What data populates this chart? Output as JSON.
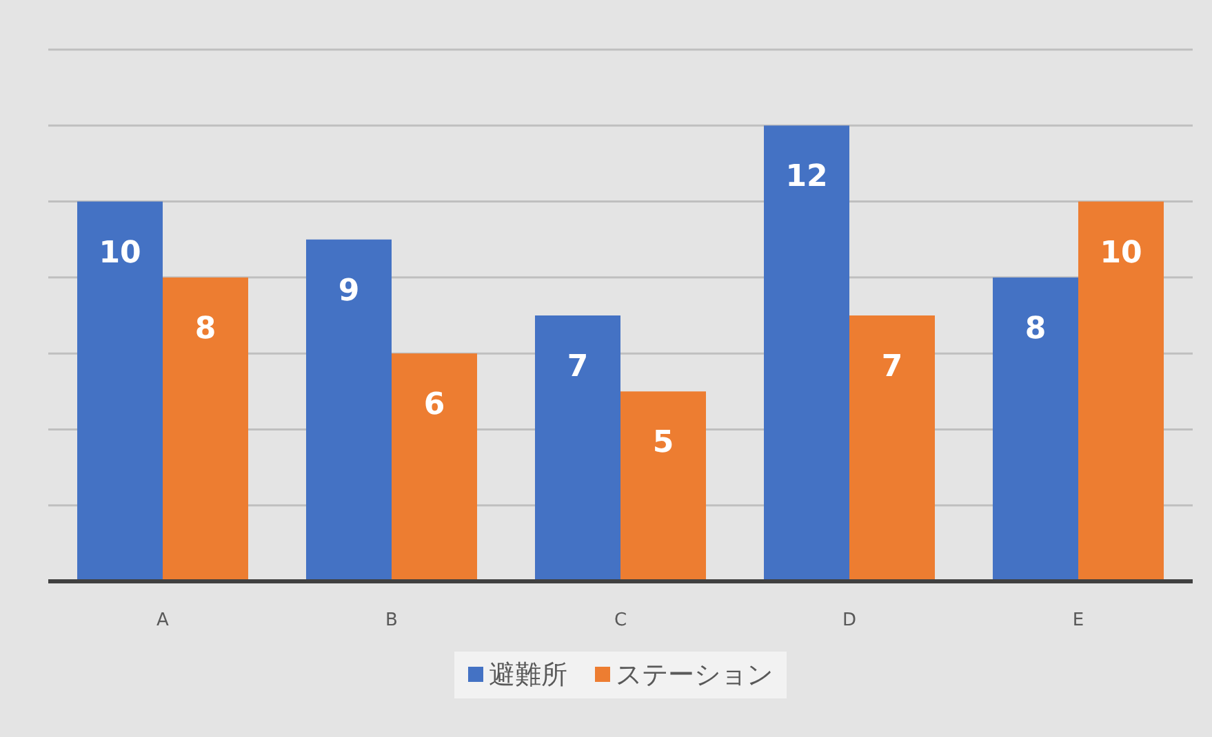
{
  "chart_data": {
    "type": "bar",
    "categories": [
      "A",
      "B",
      "C",
      "D",
      "E"
    ],
    "series": [
      {
        "name": "避難所",
        "color": "#4472c4",
        "values": [
          10,
          9,
          7,
          12,
          8
        ]
      },
      {
        "name": "ステーション",
        "color": "#ed7d31",
        "values": [
          8,
          6,
          5,
          7,
          10
        ]
      }
    ],
    "ylim": [
      0,
      14
    ],
    "yticks": [
      {
        "value": 0,
        "label": null
      },
      {
        "value": 2,
        "label": null
      },
      {
        "value": 4,
        "label": null
      },
      {
        "value": 6,
        "label": null
      },
      {
        "value": 8,
        "label": null
      },
      {
        "value": 10,
        "label": null
      },
      {
        "value": 12,
        "label": null
      },
      {
        "value": 14,
        "label": null
      }
    ],
    "tick_labels": "x",
    "grid": "y",
    "legend": "bottom",
    "data_labels": true
  }
}
